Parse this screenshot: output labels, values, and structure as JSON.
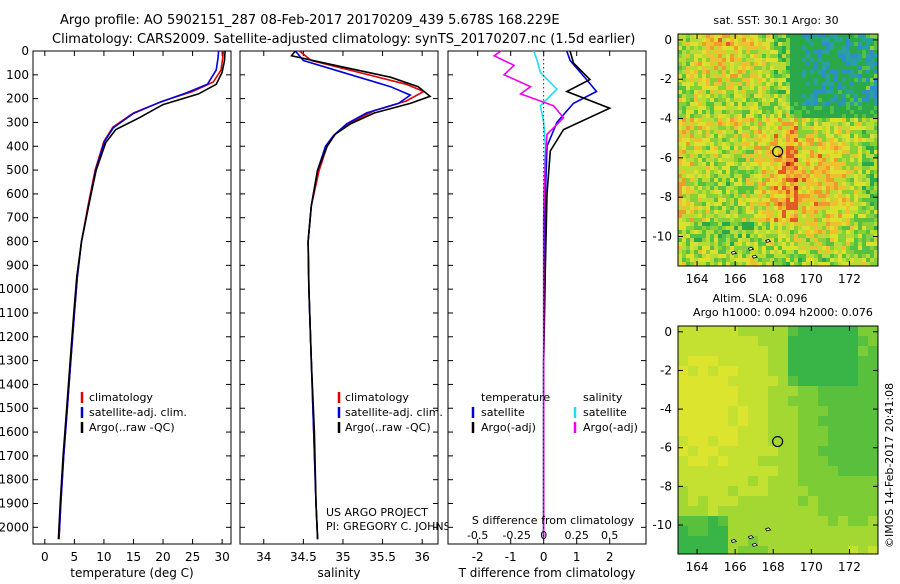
{
  "header": {
    "line1": "Argo profile: AO 5902151_287 08-Feb-2017 20170209_439 5.678S 168.229E",
    "line2": "Climatology: CARS2009. Satellite-adjusted climatology: synTS_20170207.nc (1.5d earlier)"
  },
  "colors": {
    "climatology": "#e00000",
    "satellite": "#0000dd",
    "argo": "#000000",
    "sal_satellite": "#22ddee",
    "sal_argo": "#ee00ee"
  },
  "chart_data": [
    {
      "type": "line",
      "title": "",
      "xlabel": "temperature (deg C)",
      "ylabel": "",
      "xlim": [
        -2,
        31.5
      ],
      "ylim": [
        2070,
        0
      ],
      "xticks": [
        "0",
        "5",
        "10",
        "15",
        "20",
        "25",
        "30"
      ],
      "xtick_values": [
        0,
        5,
        10,
        15,
        20,
        25,
        30
      ],
      "yticks": [
        "0",
        "100",
        "200",
        "300",
        "400",
        "500",
        "600",
        "700",
        "800",
        "900",
        "1000",
        "1100",
        "1200",
        "1300",
        "1400",
        "1500",
        "1600",
        "1700",
        "1800",
        "1900",
        "2000"
      ],
      "legend": [
        "climatology",
        "satellite-adj. clim.",
        "Argo(..raw -QC)"
      ],
      "series": [
        {
          "name": "climatology",
          "points": [
            [
              30.2,
              0
            ],
            [
              30.1,
              30
            ],
            [
              29.8,
              80
            ],
            [
              28.5,
              130
            ],
            [
              25,
              170
            ],
            [
              20,
              210
            ],
            [
              15,
              260
            ],
            [
              11.5,
              320
            ],
            [
              10,
              380
            ],
            [
              8.5,
              500
            ],
            [
              7.3,
              650
            ],
            [
              6.2,
              800
            ],
            [
              5.5,
              950
            ],
            [
              5,
              1100
            ],
            [
              4.4,
              1300
            ],
            [
              3.8,
              1500
            ],
            [
              3.2,
              1700
            ],
            [
              2.7,
              1900
            ],
            [
              2.4,
              2050
            ]
          ]
        },
        {
          "name": "satellite-adj. clim.",
          "points": [
            [
              29.4,
              0
            ],
            [
              29.3,
              30
            ],
            [
              29,
              80
            ],
            [
              27.5,
              140
            ],
            [
              24,
              175
            ],
            [
              19.5,
              215
            ],
            [
              15,
              262
            ],
            [
              11.6,
              322
            ],
            [
              10.1,
              380
            ],
            [
              8.6,
              500
            ],
            [
              7.4,
              650
            ],
            [
              6.2,
              800
            ],
            [
              5.5,
              950
            ],
            [
              5,
              1100
            ],
            [
              4.4,
              1300
            ],
            [
              3.8,
              1500
            ],
            [
              3.2,
              1700
            ],
            [
              2.7,
              1900
            ],
            [
              2.4,
              2050
            ]
          ]
        },
        {
          "name": "Argo(..raw -QC)",
          "points": [
            [
              30.5,
              0
            ],
            [
              30.4,
              40
            ],
            [
              30,
              90
            ],
            [
              29,
              140
            ],
            [
              26,
              180
            ],
            [
              20,
              225
            ],
            [
              16,
              280
            ],
            [
              12,
              330
            ],
            [
              10.3,
              385
            ],
            [
              8.7,
              500
            ],
            [
              7.4,
              650
            ],
            [
              6.2,
              800
            ],
            [
              5.4,
              950
            ],
            [
              4.9,
              1100
            ],
            [
              4.3,
              1300
            ],
            [
              3.7,
              1500
            ],
            [
              3.1,
              1700
            ],
            [
              2.6,
              1900
            ],
            [
              2.3,
              2050
            ]
          ]
        }
      ]
    },
    {
      "type": "line",
      "title": "",
      "xlabel": "salinity",
      "ylabel": "",
      "xlim": [
        33.7,
        36.2
      ],
      "ylim": [
        2070,
        0
      ],
      "xticks": [
        "34",
        "34.5",
        "35",
        "35.5",
        "36"
      ],
      "xtick_values": [
        34,
        34.5,
        35,
        35.5,
        36
      ],
      "legend": [
        "climatology",
        "satellite-adj. clim.",
        "Argo(..raw -QC)"
      ],
      "annotation": [
        "US ARGO PROJECT",
        "PI: GREGORY C. JOHNSON"
      ],
      "series": [
        {
          "name": "climatology",
          "points": [
            [
              34.45,
              0
            ],
            [
              34.6,
              40
            ],
            [
              35.2,
              90
            ],
            [
              35.8,
              140
            ],
            [
              36.02,
              170
            ],
            [
              35.8,
              210
            ],
            [
              35.4,
              250
            ],
            [
              35.1,
              300
            ],
            [
              34.9,
              350
            ],
            [
              34.8,
              400
            ],
            [
              34.7,
              500
            ],
            [
              34.6,
              650
            ],
            [
              34.56,
              800
            ],
            [
              34.57,
              1000
            ],
            [
              34.6,
              1300
            ],
            [
              34.63,
              1600
            ],
            [
              34.66,
              1900
            ],
            [
              34.68,
              2050
            ]
          ]
        },
        {
          "name": "satellite-adj. clim.",
          "points": [
            [
              34.4,
              0
            ],
            [
              34.5,
              40
            ],
            [
              35.1,
              100
            ],
            [
              35.6,
              150
            ],
            [
              35.85,
              185
            ],
            [
              35.7,
              220
            ],
            [
              35.3,
              260
            ],
            [
              35.05,
              305
            ],
            [
              34.88,
              355
            ],
            [
              34.78,
              400
            ],
            [
              34.68,
              500
            ],
            [
              34.6,
              650
            ],
            [
              34.56,
              800
            ],
            [
              34.57,
              1000
            ],
            [
              34.6,
              1300
            ],
            [
              34.63,
              1600
            ],
            [
              34.66,
              1900
            ],
            [
              34.68,
              2050
            ]
          ]
        },
        {
          "name": "Argo(..raw -QC)",
          "points": [
            [
              34.4,
              0
            ],
            [
              34.35,
              20
            ],
            [
              34.9,
              60
            ],
            [
              35.6,
              110
            ],
            [
              35.95,
              150
            ],
            [
              36.1,
              190
            ],
            [
              35.85,
              220
            ],
            [
              35.4,
              260
            ],
            [
              35.1,
              305
            ],
            [
              34.9,
              350
            ],
            [
              34.8,
              400
            ],
            [
              34.68,
              500
            ],
            [
              34.6,
              650
            ],
            [
              34.56,
              800
            ],
            [
              34.57,
              1000
            ],
            [
              34.6,
              1300
            ],
            [
              34.64,
              1600
            ],
            [
              34.66,
              1900
            ],
            [
              34.68,
              2050
            ]
          ]
        }
      ]
    },
    {
      "type": "line",
      "title": "",
      "xlabel": "T difference from climatology",
      "ylabel": "",
      "xlim": [
        -2.9,
        3.1
      ],
      "ylim": [
        2070,
        0
      ],
      "xticks": [
        "-2",
        "-1",
        "0",
        "1",
        "2"
      ],
      "xtick_values": [
        -2,
        -1,
        0,
        1,
        2
      ],
      "top_label": "S difference from climatology",
      "top_ticks": [
        "-0.5",
        "-0.25",
        "0",
        "0.25",
        "0.5"
      ],
      "top_tick_values": [
        -2,
        -1,
        0,
        1,
        2
      ],
      "legend_temperature": {
        "title": "temperature",
        "items": [
          "satellite",
          "Argo(-adj)"
        ]
      },
      "legend_salinity": {
        "title": "salinity",
        "items": [
          "satellite",
          "Argo(-adj)"
        ]
      },
      "series": [
        {
          "name": "temperature satellite",
          "points": [
            [
              0.7,
              0
            ],
            [
              0.8,
              40
            ],
            [
              1.3,
              120
            ],
            [
              1.6,
              170
            ],
            [
              0.9,
              220
            ],
            [
              0.4,
              300
            ],
            [
              0.1,
              400
            ],
            [
              0.05,
              600
            ],
            [
              0.02,
              900
            ],
            [
              0,
              1300
            ],
            [
              0,
              2050
            ]
          ]
        },
        {
          "name": "temperature Argo(-adj)",
          "points": [
            [
              0.8,
              0
            ],
            [
              0.9,
              50
            ],
            [
              1.4,
              120
            ],
            [
              0.7,
              170
            ],
            [
              2.0,
              240
            ],
            [
              0.6,
              330
            ],
            [
              0.2,
              420
            ],
            [
              0.1,
              600
            ],
            [
              0.05,
              900
            ],
            [
              0,
              1300
            ],
            [
              0,
              2050
            ]
          ]
        },
        {
          "name": "salinity satellite",
          "points": [
            [
              -0.3,
              0
            ],
            [
              -0.2,
              40
            ],
            [
              -0.1,
              90
            ],
            [
              0.4,
              160
            ],
            [
              -0.1,
              230
            ],
            [
              0,
              300
            ],
            [
              0.05,
              400
            ],
            [
              0,
              600
            ],
            [
              0,
              900
            ],
            [
              0,
              1300
            ],
            [
              0,
              2050
            ]
          ]
        },
        {
          "name": "salinity Argo(-adj)",
          "points": [
            [
              -1.3,
              0
            ],
            [
              -1.5,
              20
            ],
            [
              -0.9,
              60
            ],
            [
              -1.2,
              100
            ],
            [
              -0.4,
              150
            ],
            [
              -0.7,
              180
            ],
            [
              0.3,
              230
            ],
            [
              0.6,
              280
            ],
            [
              0.1,
              350
            ],
            [
              0.05,
              450
            ],
            [
              0,
              700
            ],
            [
              0,
              1000
            ],
            [
              0,
              1500
            ],
            [
              0,
              2050
            ]
          ]
        }
      ]
    },
    {
      "type": "heatmap",
      "title": "sat. SST: 30.1  Argo: 30",
      "xlim": [
        163,
        173.5
      ],
      "ylim": [
        -11.5,
        0.3
      ],
      "xticks": [
        "164",
        "166",
        "168",
        "170",
        "172"
      ],
      "xtick_values": [
        164,
        166,
        168,
        170,
        172
      ],
      "yticks": [
        "0",
        "-2",
        "-4",
        "-6",
        "-8",
        "-10"
      ],
      "ytick_values": [
        0,
        -2,
        -4,
        -6,
        -8,
        -10
      ],
      "marker": [
        168.23,
        -5.68
      ]
    },
    {
      "type": "heatmap",
      "title": "Altim. SLA: 0.096",
      "subtitle": "Argo h1000: 0.094 h2000: 0.076",
      "xlim": [
        163,
        173.5
      ],
      "ylim": [
        -11.5,
        0.3
      ],
      "xticks": [
        "164",
        "166",
        "168",
        "170",
        "172"
      ],
      "xtick_values": [
        164,
        166,
        168,
        170,
        172
      ],
      "yticks": [
        "0",
        "-2",
        "-4",
        "-6",
        "-8",
        "-10"
      ],
      "ytick_values": [
        0,
        -2,
        -4,
        -6,
        -8,
        -10
      ],
      "marker": [
        168.23,
        -5.68
      ]
    }
  ],
  "credit": "©IMOS 14-Feb-2017 20:41:08"
}
